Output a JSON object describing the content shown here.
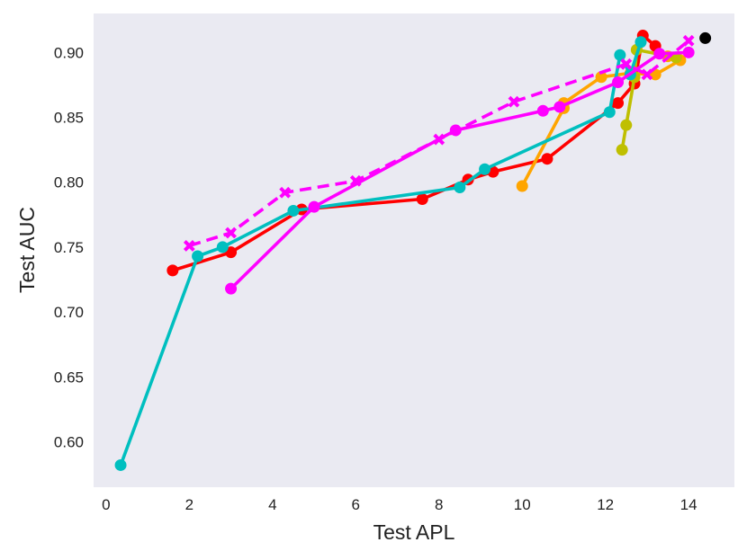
{
  "chart_data": {
    "type": "line",
    "title": "",
    "xlabel": "Test APL",
    "ylabel": "Test AUC",
    "xlim": [
      -0.3,
      15.1
    ],
    "ylim": [
      0.565,
      0.93
    ],
    "xticks": [
      0,
      2,
      4,
      6,
      8,
      10,
      12,
      14
    ],
    "yticks": [
      0.6,
      0.65,
      0.7,
      0.75,
      0.8,
      0.85,
      0.9
    ],
    "ytick_labels": [
      "0.60",
      "0.65",
      "0.70",
      "0.75",
      "0.80",
      "0.85",
      "0.90"
    ],
    "grid": false,
    "background": "#eaeaf2",
    "series": [
      {
        "color": "#ff0000",
        "dashed": false,
        "marker": "circle",
        "points": [
          [
            1.6,
            0.732
          ],
          [
            3.0,
            0.746
          ],
          [
            4.7,
            0.779
          ],
          [
            7.6,
            0.787
          ],
          [
            8.7,
            0.802
          ],
          [
            9.3,
            0.808
          ],
          [
            10.6,
            0.818
          ],
          [
            12.3,
            0.861
          ],
          [
            12.7,
            0.876
          ],
          [
            12.9,
            0.913
          ],
          [
            13.2,
            0.905
          ]
        ]
      },
      {
        "color": "#ffa500",
        "dashed": false,
        "marker": "circle",
        "points": [
          [
            10.0,
            0.797
          ],
          [
            11.0,
            0.857
          ],
          [
            11.0,
            0.861
          ],
          [
            11.9,
            0.881
          ],
          [
            12.6,
            0.884
          ],
          [
            13.2,
            0.883
          ],
          [
            13.8,
            0.894
          ],
          [
            13.5,
            0.897
          ]
        ]
      },
      {
        "color": "#bfbf00",
        "dashed": false,
        "marker": "circle",
        "points": [
          [
            12.4,
            0.825
          ],
          [
            12.5,
            0.844
          ],
          [
            12.7,
            0.881
          ],
          [
            12.75,
            0.902
          ],
          [
            13.7,
            0.896
          ]
        ]
      },
      {
        "color": "#00bfbf",
        "dashed": false,
        "marker": "circle",
        "points": [
          [
            0.35,
            0.582
          ],
          [
            2.2,
            0.743
          ],
          [
            2.8,
            0.75
          ],
          [
            4.5,
            0.778
          ],
          [
            8.5,
            0.796
          ],
          [
            9.1,
            0.81
          ],
          [
            12.1,
            0.854
          ],
          [
            12.35,
            0.898
          ],
          [
            12.6,
            0.883
          ],
          [
            12.85,
            0.908
          ]
        ]
      },
      {
        "color": "#ff00ff",
        "dashed": false,
        "marker": "circle",
        "points": [
          [
            3.0,
            0.718
          ],
          [
            5.0,
            0.781
          ],
          [
            8.4,
            0.84
          ],
          [
            10.5,
            0.855
          ],
          [
            10.9,
            0.858
          ],
          [
            12.3,
            0.877
          ],
          [
            13.3,
            0.899
          ],
          [
            14.0,
            0.9
          ]
        ]
      },
      {
        "color": "#ff00ff",
        "dashed": true,
        "marker": "x",
        "points": [
          [
            2.0,
            0.751
          ],
          [
            3.0,
            0.761
          ],
          [
            4.3,
            0.792
          ],
          [
            6.0,
            0.801
          ],
          [
            8.0,
            0.833
          ],
          [
            9.8,
            0.862
          ],
          [
            12.5,
            0.891
          ],
          [
            13.0,
            0.883
          ],
          [
            14.0,
            0.909
          ]
        ]
      },
      {
        "color": "#000000",
        "dashed": false,
        "marker": "circle",
        "points": [
          [
            14.4,
            0.911
          ]
        ]
      }
    ]
  }
}
